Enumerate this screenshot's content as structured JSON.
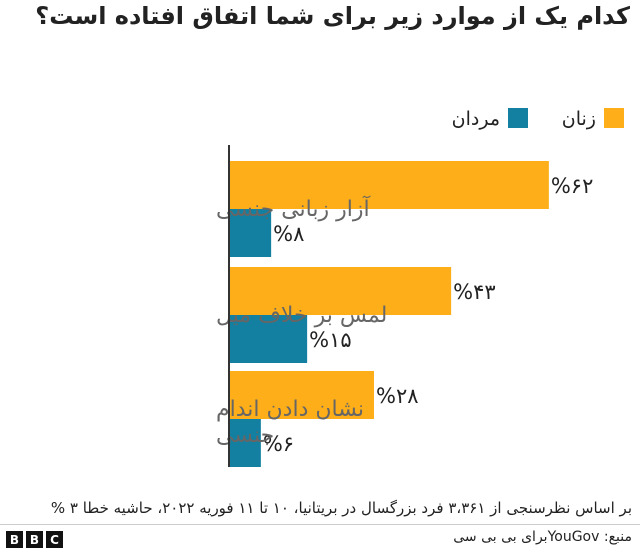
{
  "chart_data": {
    "type": "bar",
    "orientation": "horizontal",
    "title": "کدام یک از موارد زیر برای شما اتفاق افتاده است؟",
    "categories": [
      "آزار زبانی جنسی",
      "لمس بر خلاف میل",
      "نشان دادن اندام جنسی"
    ],
    "series": [
      {
        "name": "زنان",
        "color": "#fdae18",
        "values": [
          62,
          43,
          28
        ],
        "labels": [
          "%۶۲",
          "%۴۳",
          "%۲۸"
        ]
      },
      {
        "name": "مردان",
        "color": "#1380a1",
        "values": [
          8,
          15,
          6
        ],
        "labels": [
          "%۸",
          "%۱۵",
          "%۶"
        ]
      }
    ],
    "legend_position": "top-right",
    "grid": false,
    "xlim": [
      0,
      70
    ]
  },
  "footnote": "بر اساس نظرسنجی از  ۳،۳۶۱ فرد بزرگسال در بریتانیا، ۱۰ تا ۱۱ فوریه ۲۰۲۲، حاشیه خطا ۳ %",
  "source": "منبع: YouGovبرای بی بی سی",
  "logo": [
    "B",
    "B",
    "C"
  ]
}
